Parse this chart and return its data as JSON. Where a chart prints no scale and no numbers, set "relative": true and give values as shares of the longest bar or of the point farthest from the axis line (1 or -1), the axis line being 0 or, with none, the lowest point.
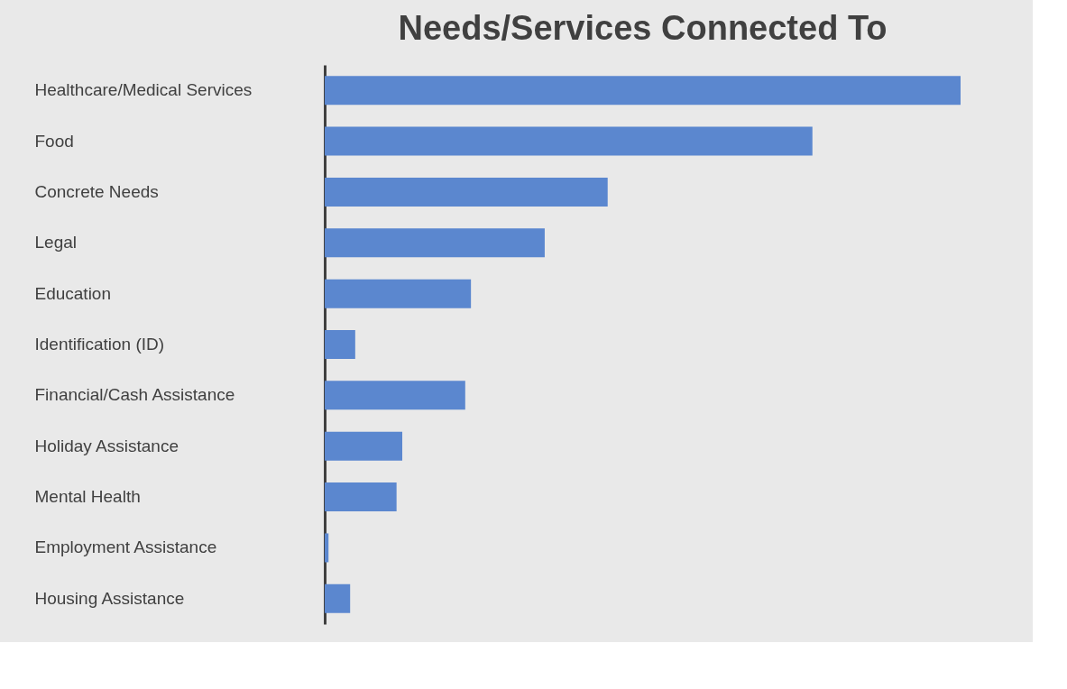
{
  "chart_data": {
    "type": "bar",
    "orientation": "horizontal",
    "relative": true,
    "title": "Needs/Services Connected To",
    "categories": [
      "Healthcare/Medical Services",
      "Food",
      "Concrete Needs",
      "Legal",
      "Education",
      "Identification (ID)",
      "Financial/Cash Assistance",
      "Holiday Assistance",
      "Mental Health",
      "Employment Assistance",
      "Housing Assistance"
    ],
    "values": [
      1,
      0.767,
      0.445,
      0.346,
      0.23,
      0.048,
      0.221,
      0.122,
      0.113,
      0.006,
      0.04
    ],
    "color": "#5b87cf"
  }
}
